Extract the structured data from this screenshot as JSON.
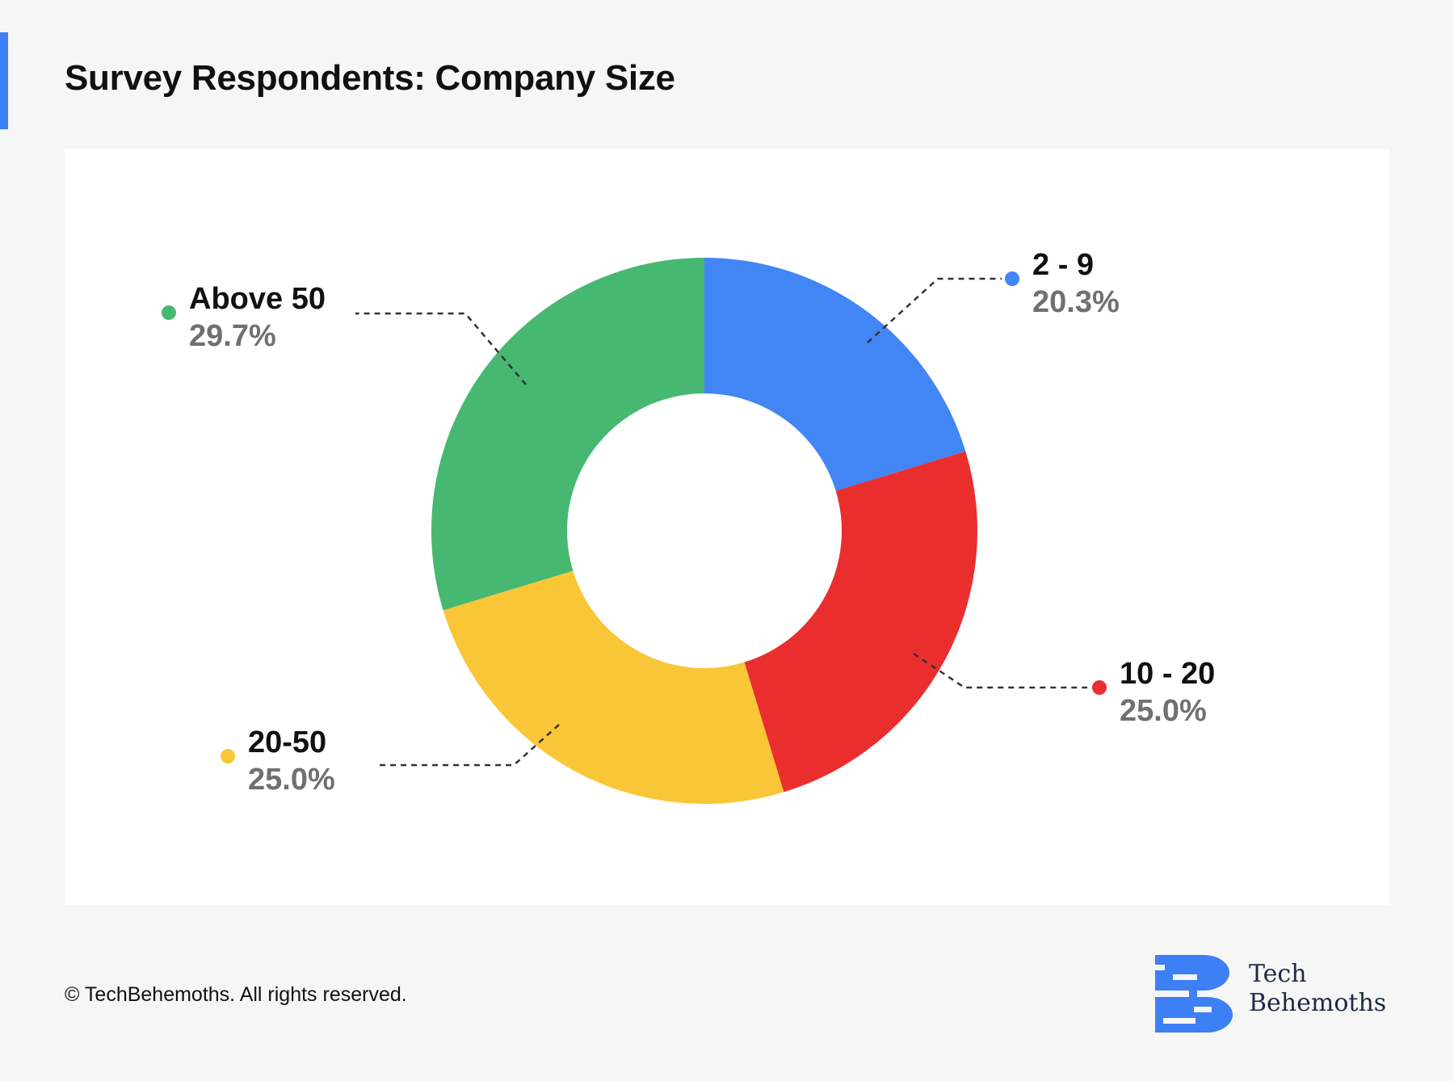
{
  "title": "Survey Respondents: Company Size",
  "footer": "© TechBehemoths. All rights reserved.",
  "logo": {
    "line1": "Tech",
    "line2": "Behemoths",
    "color": "#3d7ff5"
  },
  "colors": {
    "accent": "#3d7ff5",
    "background": "#f6f6f6",
    "panel": "#ffffff"
  },
  "chart_data": {
    "type": "pie",
    "variant": "donut",
    "slices": [
      {
        "label": "2 - 9",
        "value": 20.3,
        "display": "20.3%",
        "color": "#4285f4"
      },
      {
        "label": "10 - 20",
        "value": 25.0,
        "display": "25.0%",
        "color": "#ea2e2e"
      },
      {
        "label": "20-50",
        "value": 25.0,
        "display": "25.0%",
        "color": "#f9c637"
      },
      {
        "label": "Above 50",
        "value": 29.7,
        "display": "29.7%",
        "color": "#46b871"
      }
    ]
  }
}
